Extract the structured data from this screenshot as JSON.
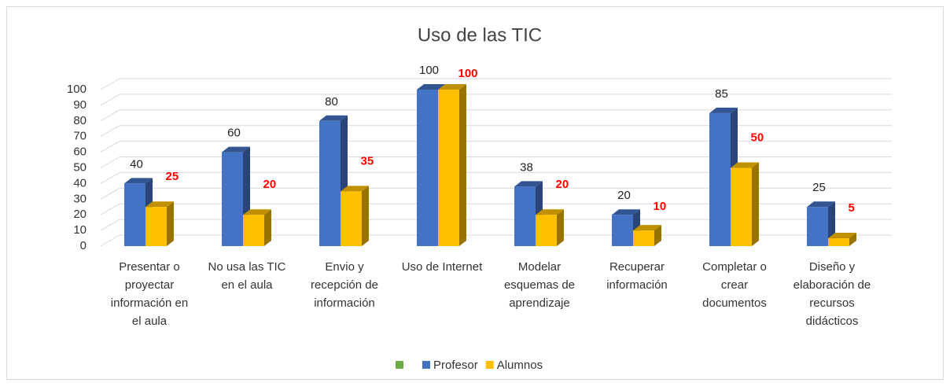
{
  "chart_data": {
    "type": "bar3d",
    "title": "Uso de las TIC",
    "categories": [
      "Presentar o proyectar información en el aula",
      "No usa las TIC en el aula",
      "Envio y recepción de información",
      "Uso de Internet",
      "Modelar esquemas de aprendizaje",
      "Recuperar información",
      "Completar o crear documentos",
      "Diseño y elaboración de recursos didácticos"
    ],
    "series": [
      {
        "name": null,
        "color": "#70ad47",
        "values": [
          null,
          null,
          null,
          null,
          null,
          null,
          null,
          null
        ]
      },
      {
        "name": "Profesor",
        "color": "#4472c4",
        "label_color": "#222222",
        "values": [
          40,
          60,
          80,
          100,
          38,
          20,
          85,
          25
        ]
      },
      {
        "name": "Alumnos",
        "color": "#ffc000",
        "label_color": "#ff0000",
        "values": [
          25,
          20,
          35,
          100,
          20,
          10,
          50,
          5
        ]
      }
    ],
    "ylim": [
      0,
      100
    ],
    "yticks": [
      0,
      10,
      20,
      30,
      40,
      50,
      60,
      70,
      80,
      90,
      100
    ],
    "grid": true,
    "legend": "bottom"
  }
}
